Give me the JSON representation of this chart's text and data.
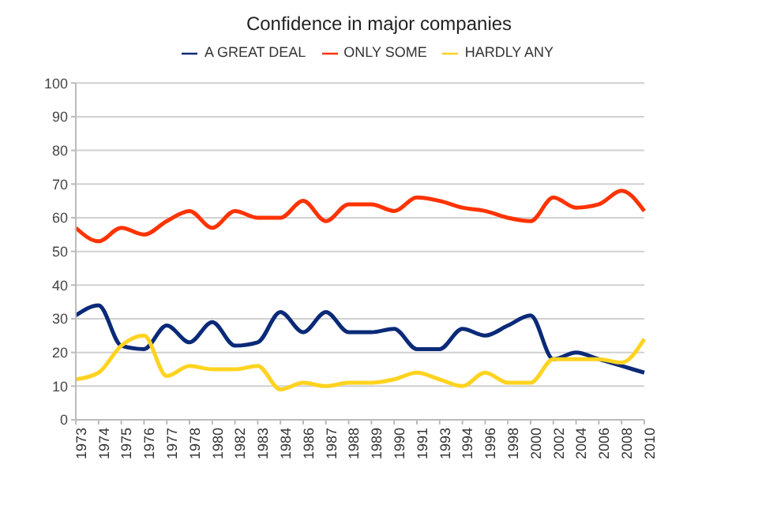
{
  "chart_data": {
    "type": "line",
    "title": "Confidence in major companies",
    "categories": [
      "1973",
      "1974",
      "1975",
      "1976",
      "1977",
      "1978",
      "1980",
      "1982",
      "1983",
      "1984",
      "1986",
      "1987",
      "1988",
      "1989",
      "1990",
      "1991",
      "1993",
      "1994",
      "1996",
      "1998",
      "2000",
      "2002",
      "2004",
      "2006",
      "2008",
      "2010"
    ],
    "series": [
      {
        "name": "A GREAT DEAL",
        "color": "#0a2a78",
        "values": [
          31,
          34,
          22,
          21,
          28,
          23,
          29,
          22,
          23,
          32,
          26,
          32,
          26,
          26,
          27,
          21,
          21,
          27,
          25,
          28,
          31,
          18,
          20,
          18,
          16,
          14
        ]
      },
      {
        "name": "ONLY SOME",
        "color": "#ff3300",
        "values": [
          57,
          53,
          57,
          55,
          59,
          62,
          57,
          62,
          60,
          60,
          65,
          59,
          64,
          64,
          62,
          66,
          65,
          63,
          62,
          60,
          59,
          66,
          63,
          64,
          68,
          62
        ]
      },
      {
        "name": "HARDLY ANY",
        "color": "#ffd320",
        "values": [
          12,
          14,
          22,
          25,
          13,
          16,
          15,
          15,
          16,
          9,
          11,
          10,
          11,
          11,
          12,
          14,
          12,
          10,
          14,
          11,
          11,
          18,
          18,
          18,
          17,
          24
        ]
      }
    ],
    "ylim": [
      0,
      100
    ],
    "yticks": [
      0,
      10,
      20,
      30,
      40,
      50,
      60,
      70,
      80,
      90,
      100
    ],
    "grid": "y",
    "legend": "top",
    "marker": "none",
    "line_style": "solid"
  }
}
